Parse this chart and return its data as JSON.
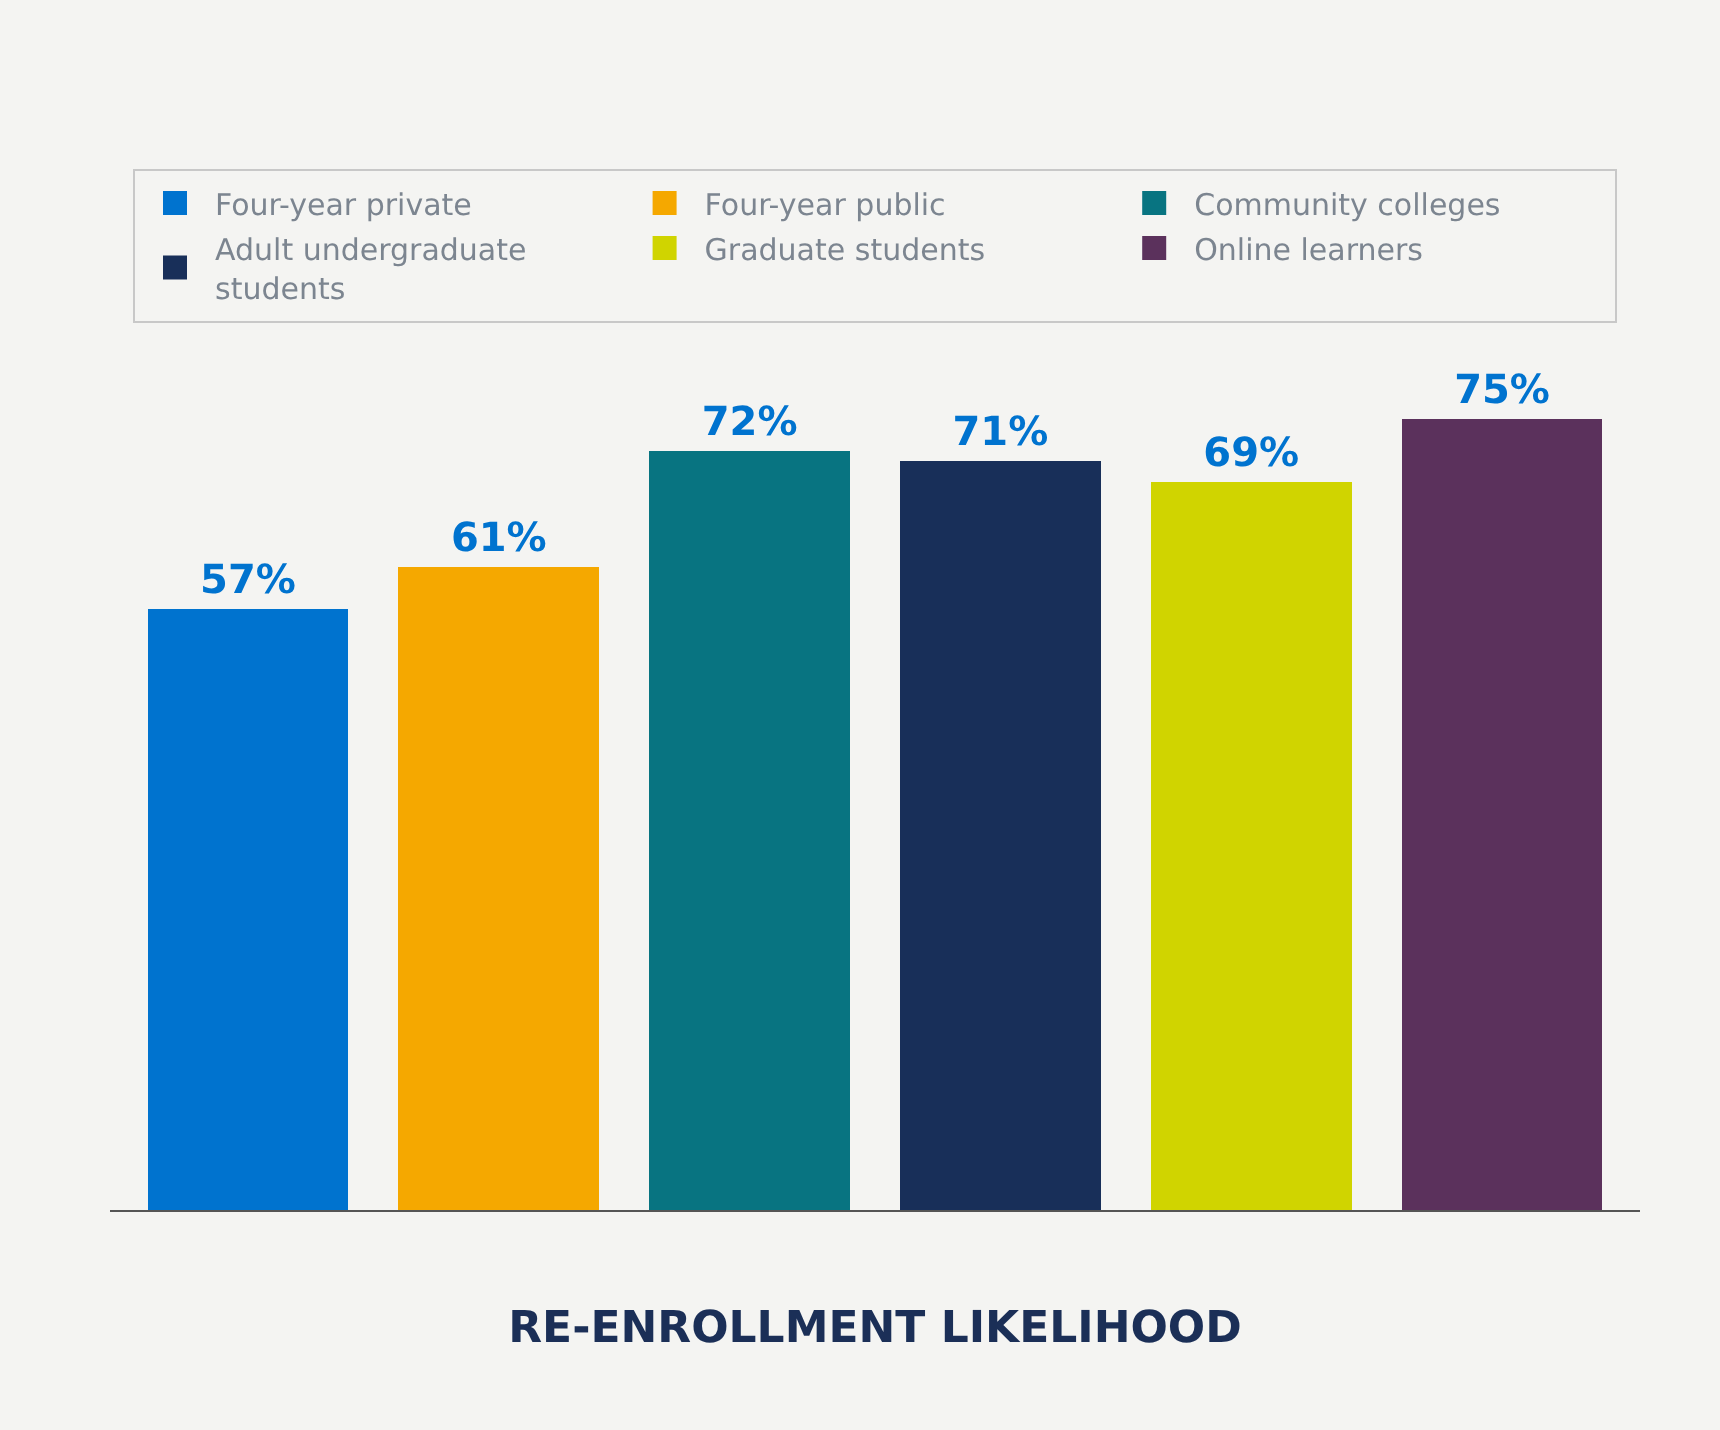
{
  "chart_data": {
    "type": "bar",
    "xlabel": "RE-ENROLLMENT LIKELIHOOD",
    "stacked": true,
    "categories": [
      null,
      null,
      null,
      null,
      null,
      null
    ],
    "series": [
      {
        "name": "Four-year private",
        "color": "#0073cf",
        "values": [
          57,
          null,
          null,
          null,
          null,
          null
        ],
        "value_labels": [
          "57%",
          null,
          null,
          null,
          null,
          null
        ]
      },
      {
        "name": "Four-year public",
        "color": "#f5a800",
        "values": [
          null,
          61,
          null,
          null,
          null,
          null
        ],
        "value_labels": [
          null,
          "61%",
          null,
          null,
          null,
          null
        ]
      },
      {
        "name": "Community colleges",
        "color": "#087481",
        "values": [
          null,
          null,
          72,
          null,
          null,
          null
        ],
        "value_labels": [
          null,
          null,
          "72%",
          null,
          null,
          null
        ]
      },
      {
        "name": "Adult undergraduate students",
        "color": "#182f59",
        "values": [
          null,
          null,
          null,
          71,
          null,
          null
        ],
        "value_labels": [
          null,
          null,
          null,
          "71%",
          null,
          null
        ]
      },
      {
        "name": "Graduate students",
        "color": "#d0d400",
        "values": [
          null,
          null,
          null,
          null,
          69,
          null
        ],
        "value_labels": [
          null,
          null,
          null,
          null,
          "69%",
          null
        ]
      },
      {
        "name": "Online learners",
        "color": "#5b315c",
        "values": [
          null,
          null,
          null,
          null,
          null,
          75
        ],
        "value_labels": [
          null,
          null,
          null,
          null,
          null,
          "75%"
        ]
      }
    ],
    "legend": "top",
    "grid": false,
    "tick_labels": false
  }
}
